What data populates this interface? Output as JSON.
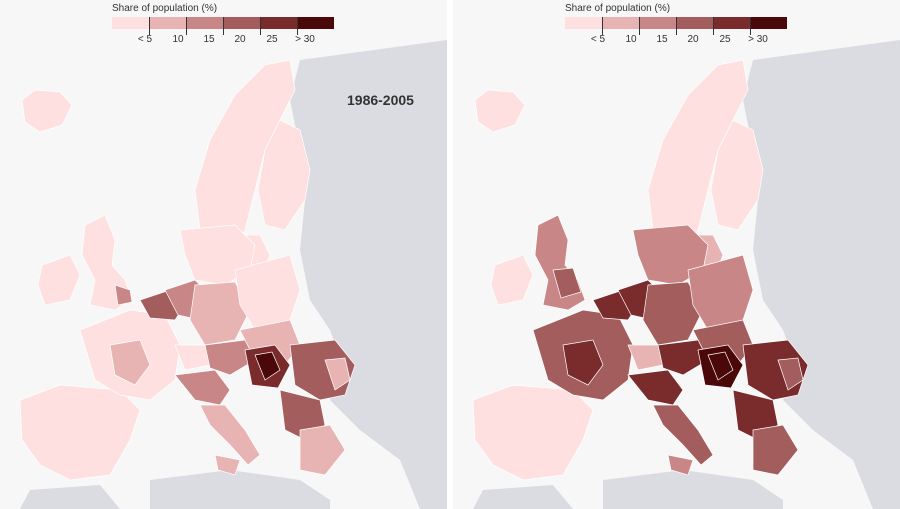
{
  "legend": {
    "title": "Share of population (%)",
    "labels": [
      "< 5",
      "10",
      "15",
      "20",
      "25",
      "> 30"
    ],
    "colors": [
      "#fde0df",
      "#e8b3b3",
      "#c98686",
      "#a35d5d",
      "#7a2c2c",
      "#4a0808"
    ]
  },
  "colors": {
    "background": "#f7f7f7",
    "non_eu_land": "#dadce2",
    "sea": "#f7f7f7",
    "region_border": "#ffffff"
  },
  "left_map": {
    "period_label": "1986-2005"
  },
  "right_map": {
    "period_label": ""
  }
}
